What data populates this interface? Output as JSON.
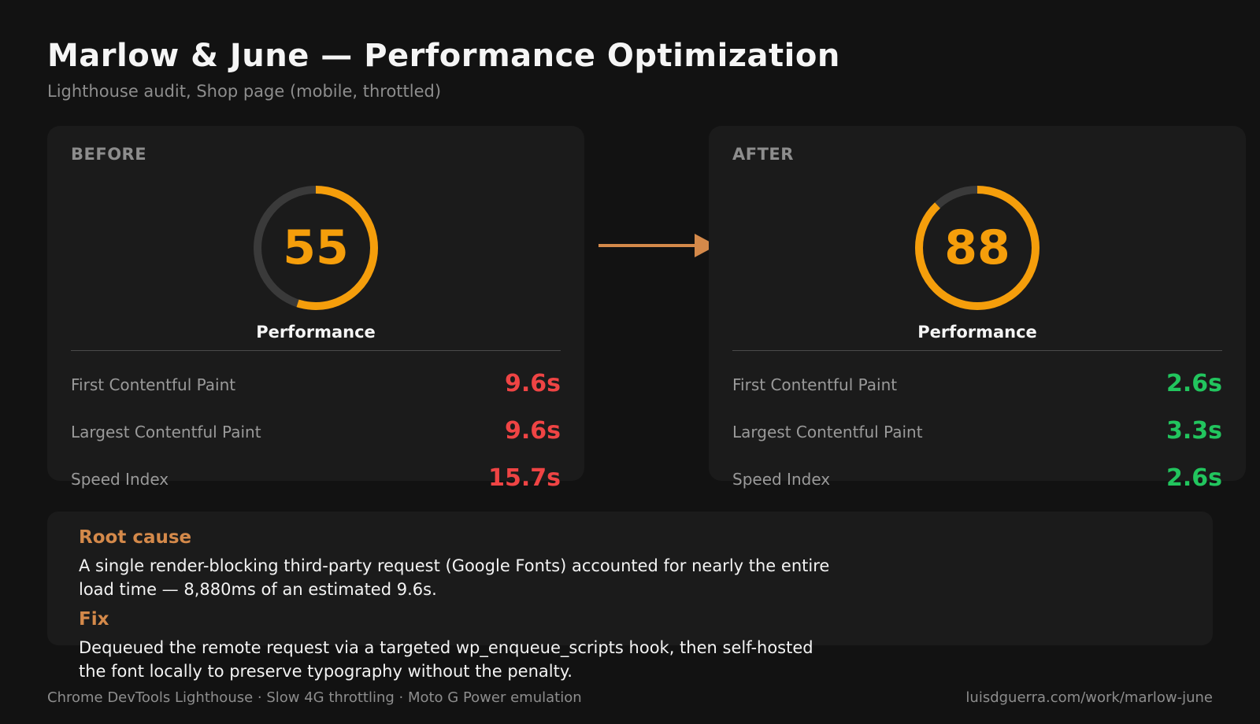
{
  "header": {
    "title": "Marlow & June — Performance Optimization",
    "subtitle": "Lighthouse audit, Shop page (mobile, throttled)"
  },
  "before": {
    "label": "BEFORE",
    "score": "55",
    "score_fraction": 0.55,
    "score_label": "Performance",
    "metrics": [
      {
        "name": "First Contentful Paint",
        "value": "9.6s"
      },
      {
        "name": "Largest Contentful Paint",
        "value": "9.6s"
      },
      {
        "name": "Speed Index",
        "value": "15.7s"
      }
    ]
  },
  "after": {
    "label": "AFTER",
    "score": "88",
    "score_fraction": 0.88,
    "score_label": "Performance",
    "metrics": [
      {
        "name": "First Contentful Paint",
        "value": "2.6s"
      },
      {
        "name": "Largest Contentful Paint",
        "value": "3.3s"
      },
      {
        "name": "Speed Index",
        "value": "2.6s"
      }
    ]
  },
  "summary": {
    "root_cause_heading": "Root cause",
    "root_cause_text": "A single render-blocking third-party request (Google Fonts) accounted for nearly the entire load time — 8,880ms of an estimated 9.6s.",
    "fix_heading": "Fix",
    "fix_text": "Dequeued the remote request via a targeted wp_enqueue_scripts hook, then self-hosted the font locally to preserve typography without the penalty."
  },
  "footer": {
    "left": "Chrome DevTools Lighthouse · Slow 4G throttling · Moto G Power emulation",
    "right": "luisdguerra.com/work/marlow-june"
  },
  "colors": {
    "score_accent": "#f59e0b",
    "bad": "#ef4444",
    "good": "#22c55e",
    "heading_accent": "#d4894a",
    "arrow": "#d4894a",
    "track": "#3a3a3a"
  }
}
